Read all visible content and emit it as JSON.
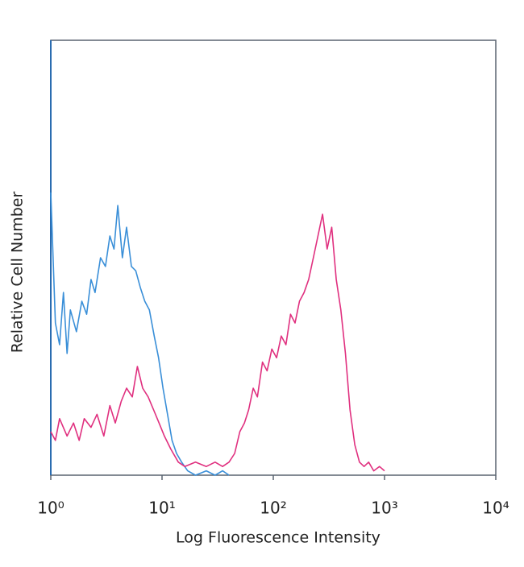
{
  "chart_data": {
    "type": "line",
    "xlabel": "Log Fluorescence Intensity",
    "ylabel": "Relative Cell Number",
    "xscale": "log",
    "xlim": [
      1,
      10000
    ],
    "xticks": [
      {
        "value": 1,
        "label": "10⁰"
      },
      {
        "value": 10,
        "label": "10¹"
      },
      {
        "value": 100,
        "label": "10²"
      },
      {
        "value": 1000,
        "label": "10³"
      },
      {
        "value": 10000,
        "label": "10⁴"
      }
    ],
    "ylim": [
      0,
      100
    ],
    "grid": false,
    "series": [
      {
        "color": "#3a8fd8",
        "x": [
          1,
          1.1,
          1.2,
          1.3,
          1.4,
          1.5,
          1.7,
          1.9,
          2.1,
          2.3,
          2.5,
          2.8,
          3.1,
          3.4,
          3.7,
          4,
          4.4,
          4.8,
          5.3,
          5.8,
          6.4,
          7,
          7.7,
          8.5,
          9.3,
          10.2,
          11.2,
          12.3,
          13.5,
          15,
          17,
          20,
          25,
          30,
          35,
          40
        ],
        "values": [
          65,
          35,
          30,
          42,
          28,
          38,
          33,
          40,
          37,
          45,
          42,
          50,
          48,
          55,
          52,
          62,
          50,
          57,
          48,
          47,
          43,
          40,
          38,
          32,
          27,
          20,
          14,
          8,
          5,
          3,
          1,
          0,
          1,
          0,
          1,
          0
        ]
      },
      {
        "color": "#e0307f",
        "x": [
          1,
          1.1,
          1.2,
          1.4,
          1.6,
          1.8,
          2,
          2.3,
          2.6,
          3,
          3.4,
          3.8,
          4.3,
          4.8,
          5.4,
          6,
          6.7,
          7.5,
          8.4,
          9.4,
          10.5,
          12,
          14,
          16,
          20,
          25,
          30,
          35,
          40,
          45,
          50,
          55,
          60,
          66,
          72,
          80,
          88,
          97,
          107,
          118,
          130,
          143,
          157,
          172,
          189,
          208,
          229,
          252,
          277,
          305,
          335,
          368,
          405,
          445,
          490,
          540,
          595,
          655,
          720,
          800,
          900,
          1000
        ],
        "values": [
          10,
          8,
          13,
          9,
          12,
          8,
          13,
          11,
          14,
          9,
          16,
          12,
          17,
          20,
          18,
          25,
          20,
          18,
          15,
          12,
          9,
          6,
          3,
          2,
          3,
          2,
          3,
          2,
          3,
          5,
          10,
          12,
          15,
          20,
          18,
          26,
          24,
          29,
          27,
          32,
          30,
          37,
          35,
          40,
          42,
          45,
          50,
          55,
          60,
          52,
          57,
          45,
          38,
          28,
          15,
          7,
          3,
          2,
          3,
          1,
          2,
          1
        ]
      }
    ]
  }
}
